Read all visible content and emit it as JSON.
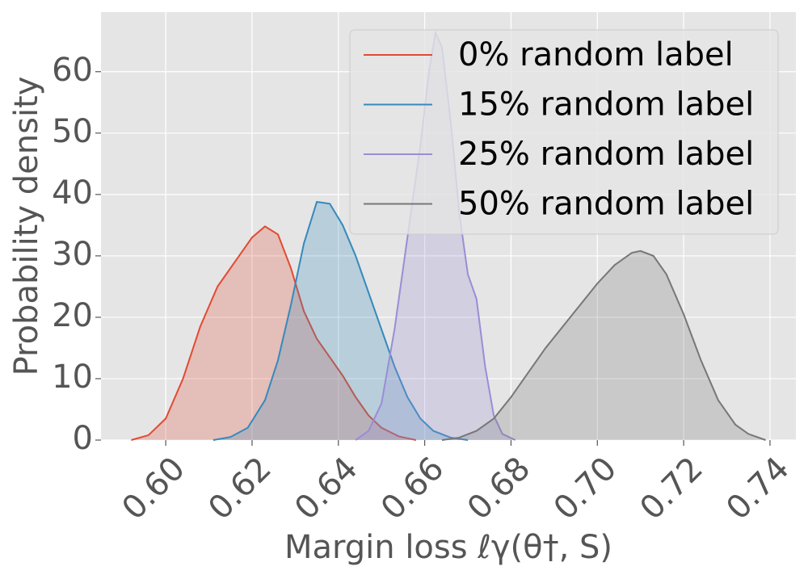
{
  "chart_data": {
    "type": "density",
    "xlabel": "Margin loss ℓγ(θ†, S)",
    "ylabel": "Probability density",
    "xlim": [
      0.585,
      0.746
    ],
    "ylim": [
      0,
      69.7
    ],
    "xticks": [
      {
        "value": 0.6,
        "label": "0.60"
      },
      {
        "value": 0.62,
        "label": "0.62"
      },
      {
        "value": 0.64,
        "label": "0.64"
      },
      {
        "value": 0.66,
        "label": "0.66"
      },
      {
        "value": 0.68,
        "label": "0.68"
      },
      {
        "value": 0.7,
        "label": "0.70"
      },
      {
        "value": 0.72,
        "label": "0.72"
      },
      {
        "value": 0.74,
        "label": "0.74"
      }
    ],
    "yticks": [
      0,
      10,
      20,
      30,
      40,
      50,
      60
    ],
    "grid": true,
    "legend": "upper right",
    "series": [
      {
        "name": "0% random label",
        "color": "#E24A33",
        "x": [
          0.592,
          0.596,
          0.6,
          0.604,
          0.608,
          0.612,
          0.616,
          0.62,
          0.623,
          0.626,
          0.629,
          0.632,
          0.635,
          0.638,
          0.641,
          0.644,
          0.647,
          0.65,
          0.654,
          0.658
        ],
        "values": [
          0,
          0.8,
          3.5,
          10,
          18.5,
          25,
          29,
          33,
          34.8,
          33.5,
          28,
          21,
          16.5,
          13.5,
          10.5,
          7,
          4,
          2,
          0.6,
          0
        ]
      },
      {
        "name": "15% random label",
        "color": "#348ABD",
        "x": [
          0.611,
          0.615,
          0.619,
          0.623,
          0.626,
          0.629,
          0.632,
          0.635,
          0.638,
          0.641,
          0.644,
          0.647,
          0.65,
          0.653,
          0.656,
          0.659,
          0.662,
          0.666,
          0.67
        ],
        "values": [
          0,
          0.5,
          2,
          6.5,
          13,
          22,
          32,
          38.8,
          38.5,
          35,
          30,
          24,
          18,
          12,
          7,
          3.5,
          1.5,
          0.4,
          0
        ]
      },
      {
        "name": "25% random label",
        "color": "#988ED5",
        "x": [
          0.644,
          0.647,
          0.65,
          0.653,
          0.656,
          0.659,
          0.661,
          0.6625,
          0.664,
          0.666,
          0.668,
          0.67,
          0.671,
          0.672,
          0.674,
          0.676,
          0.678,
          0.681
        ],
        "values": [
          0,
          1.5,
          6,
          18,
          33,
          48,
          60,
          66.3,
          64,
          52,
          37,
          27,
          25,
          23,
          12,
          4,
          1,
          0
        ]
      },
      {
        "name": "50% random label",
        "color": "#777777",
        "x": [
          0.664,
          0.668,
          0.672,
          0.676,
          0.68,
          0.684,
          0.688,
          0.692,
          0.696,
          0.7,
          0.704,
          0.708,
          0.71,
          0.713,
          0.716,
          0.72,
          0.724,
          0.728,
          0.732,
          0.735,
          0.739
        ],
        "values": [
          0,
          0.4,
          1.5,
          3.5,
          7,
          11,
          15,
          18.5,
          22,
          25.5,
          28.5,
          30.5,
          30.8,
          30,
          27,
          20.5,
          13,
          6.5,
          2.5,
          1,
          0
        ]
      }
    ]
  }
}
